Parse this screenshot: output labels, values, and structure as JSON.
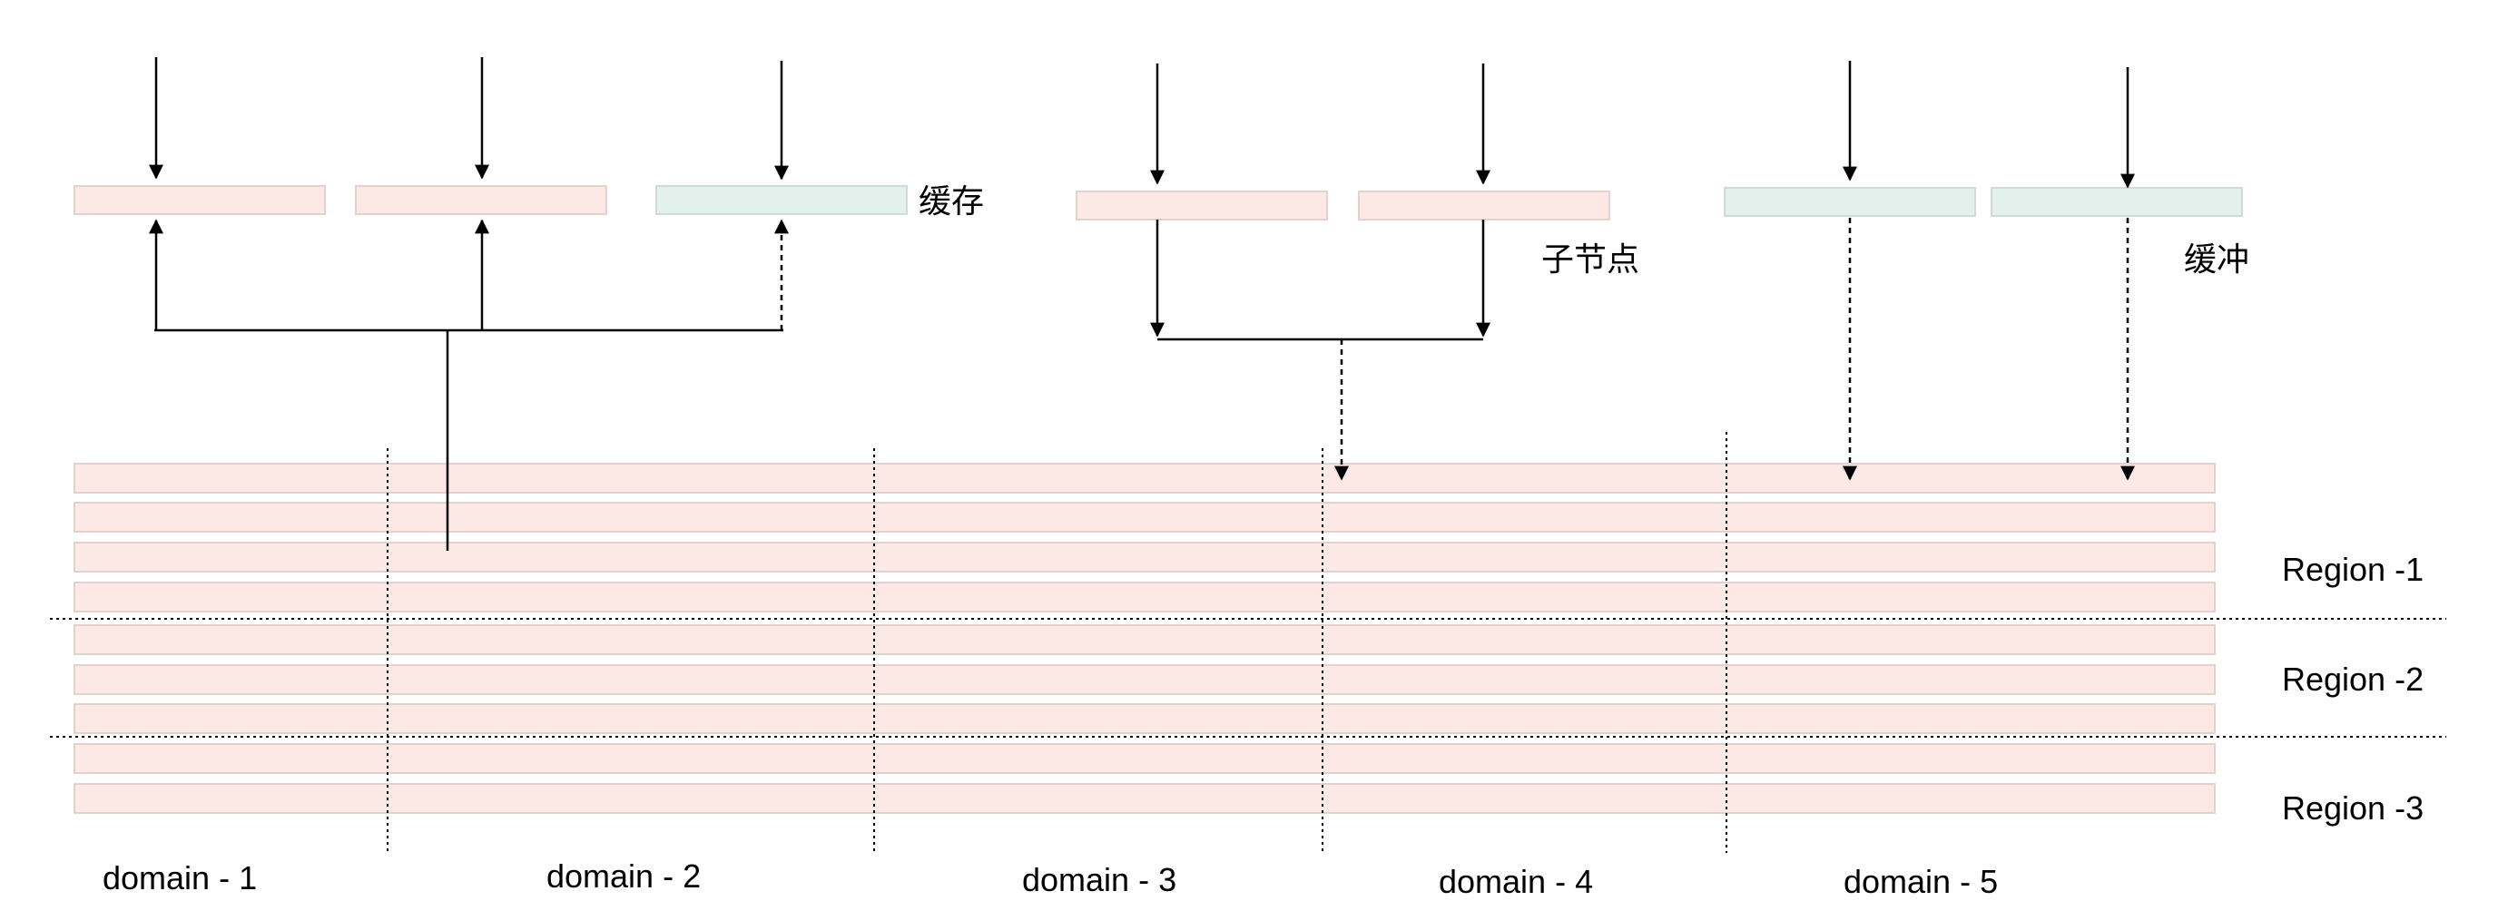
{
  "labels": {
    "cache": "缓存",
    "child_node": "子节点",
    "buffer": "缓冲"
  },
  "regions": [
    "Region -1",
    "Region -2",
    "Region -3"
  ],
  "domains": [
    "domain - 1",
    "domain - 2",
    "domain - 3",
    "domain - 4",
    "domain - 5"
  ],
  "colors": {
    "pink_fill": "#fce8e5",
    "pink_stroke": "#e3d1ce",
    "green_fill": "#e3f1ec",
    "green_stroke": "#cfdcd6",
    "line": "#000000"
  }
}
